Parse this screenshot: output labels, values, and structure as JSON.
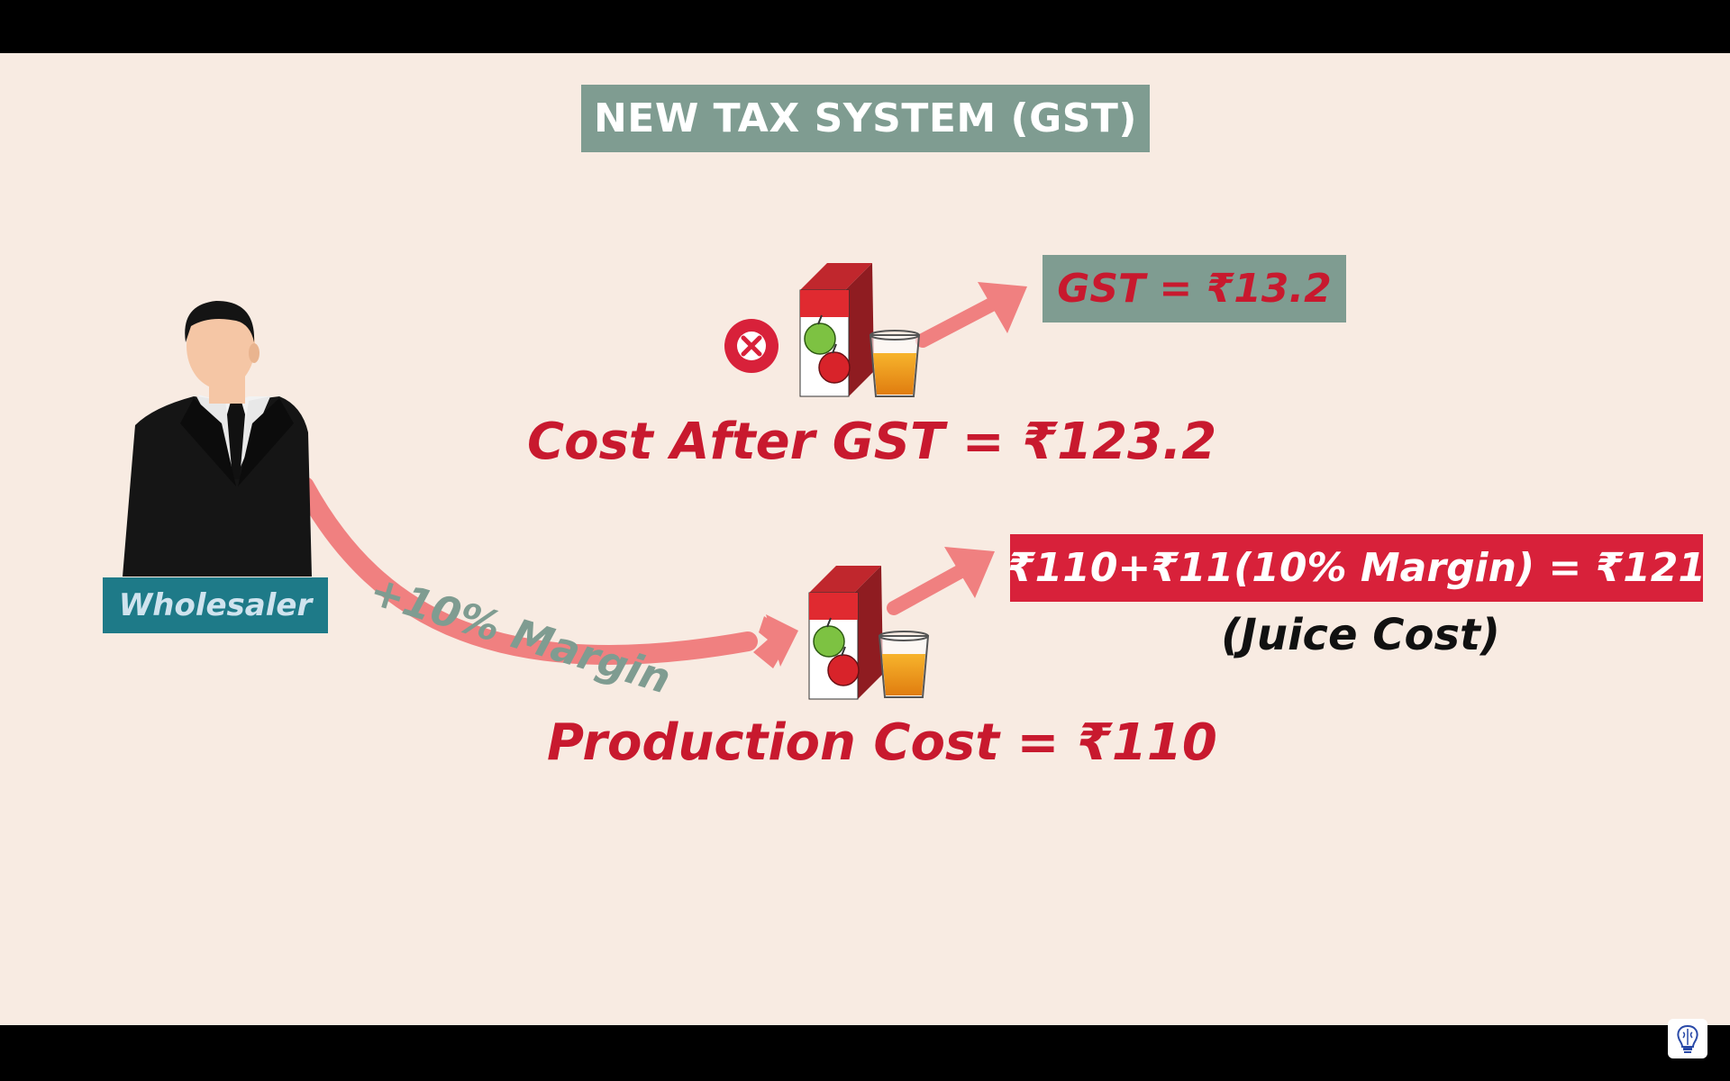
{
  "title": "NEW TAX SYSTEM (GST)",
  "gst_label": "GST = ₹13.2",
  "cost_after_label": "Cost After GST = ₹123.2",
  "formula_label": "₹110+₹11(10% Margin) = ₹121",
  "juice_cost_label": "(Juice Cost)",
  "production_cost_label": "Production Cost = ₹110",
  "wholesaler_label": "Wholesaler",
  "margin_label": "+10% Margin",
  "icons": {
    "person": "businessman-icon",
    "juice_top": "juice-carton-glass-icon",
    "juice_bottom": "juice-carton-glass-icon",
    "cross": "cross-circle-icon",
    "logo": "brain-bulb-logo"
  },
  "colors": {
    "background": "#f8ebe2",
    "teal_box": "#7f9c91",
    "red_text": "#c8192e",
    "red_box": "#d8213a",
    "arrow": "#f08080",
    "wholesaler_box": "#1e7a88"
  }
}
